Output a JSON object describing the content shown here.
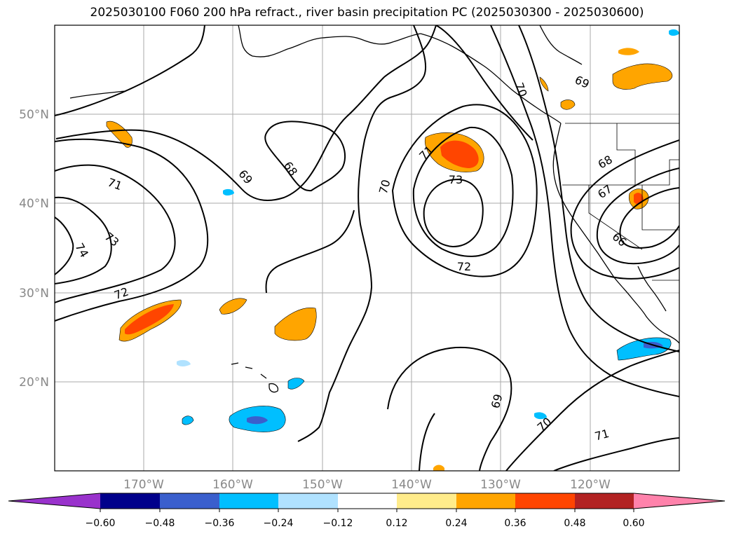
{
  "title": "2025030100 F060 200 hPa refract., river basin precipitation PC (2025030300 - 2025030600)",
  "map": {
    "lon_range": [
      -180,
      -110
    ],
    "lat_range": [
      10,
      60
    ],
    "lon_labels": [
      "170°W",
      "160°W",
      "150°W",
      "140°W",
      "130°W",
      "120°W"
    ],
    "lat_labels": [
      "20°N",
      "30°N",
      "40°N",
      "50°N"
    ],
    "contour_labels": [
      "68",
      "69",
      "70",
      "71",
      "72",
      "73",
      "74",
      "71",
      "72",
      "73",
      "70",
      "69",
      "70",
      "71",
      "69",
      "68",
      "67",
      "66"
    ]
  },
  "colorbar": {
    "tick_labels": [
      "−0.60",
      "−0.48",
      "−0.36",
      "−0.24",
      "−0.12",
      "0.12",
      "0.24",
      "0.36",
      "0.48",
      "0.60"
    ],
    "colors": [
      "#9932cc",
      "#00008b",
      "#3a5fcd",
      "#00bfff",
      "#b0e2ff",
      "#ffffff",
      "#ffec8b",
      "#ffa500",
      "#ff4500",
      "#b22222",
      "#ff82ab"
    ]
  }
}
